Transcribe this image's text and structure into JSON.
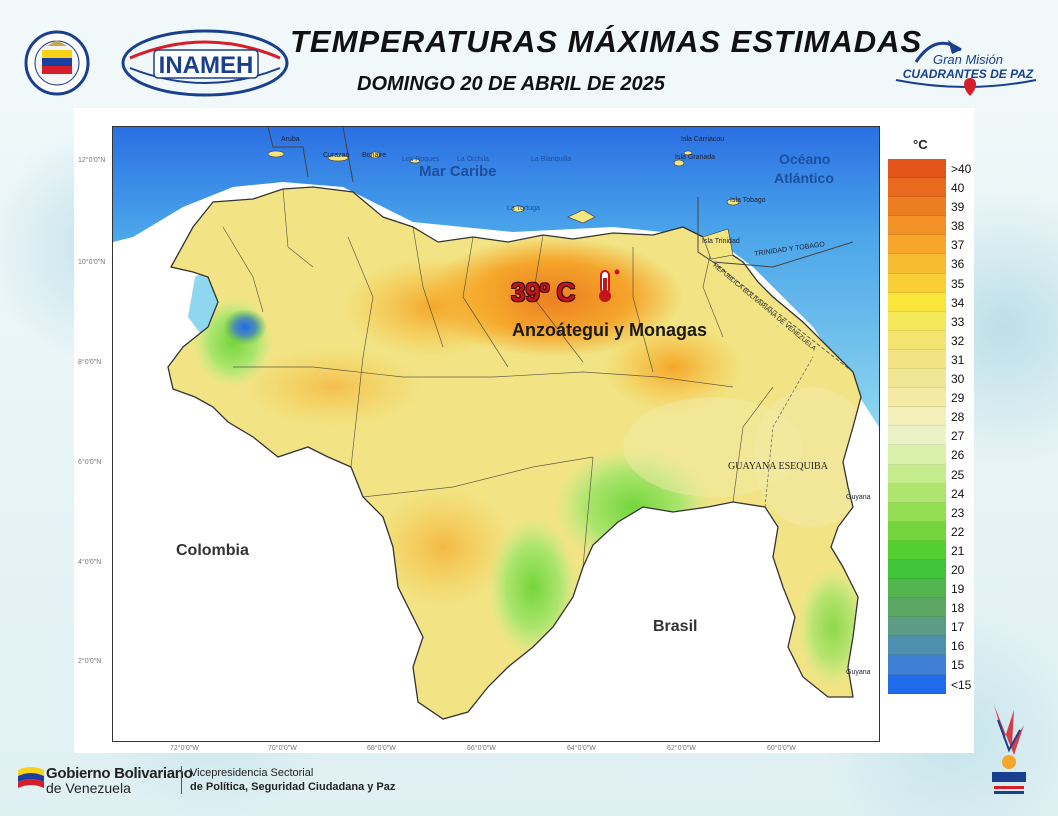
{
  "header": {
    "title": "TEMPERATURAS MÁXIMAS ESTIMADAS",
    "subtitle": "DOMINGO 20 DE ABRIL DE 2025",
    "inameh_logo": "INAMEH",
    "gran_mision_line1": "Gran Misión",
    "gran_mision_line2": "CUADRANTES DE PAZ"
  },
  "map": {
    "lat_labels": [
      "12°0'0\"N",
      "10°0'0\"N",
      "8°0'0\"N",
      "6°0'0\"N",
      "4°0'0\"N",
      "2°0'0\"N"
    ],
    "lon_labels": [
      "72°0'0\"W",
      "70°0'0\"W",
      "68°0'0\"W",
      "66°0'0\"W",
      "64°0'0\"W",
      "62°0'0\"W",
      "60°0'0\"W"
    ],
    "places": {
      "colombia": "Colombia",
      "brasil": "Brasil",
      "mar_caribe": "Mar Caribe",
      "oceano": "Océano",
      "atlantico": "Atlántico",
      "guayana_esequiba": "GUAYANA ESEQUIBA",
      "trinidad_tobago": "TRINIDAD Y TOBAGO",
      "republica": "REPUBLICA BOLIVARIANA DE VENEZUELA",
      "aruba": "Aruba",
      "curazao": "Curazao",
      "bonaire": "Bonaire",
      "los_roques": "Los Roques",
      "la_orchila": "La Orchila",
      "la_blanquilla": "La Blanquilla",
      "la_tortuga": "La Tortuga",
      "isla_carriacou": "Isla Carriacou",
      "isla_granada": "Isla Granada",
      "isla_tobago": "Isla Tobago",
      "isla_trinidad": "Isla Trinidad",
      "guyana_1": "Guyana",
      "guyana_2": "Guyana"
    },
    "highlight": {
      "temperature": "39º C",
      "region": "Anzoátegui y Monagas"
    }
  },
  "legend": {
    "unit": "°C",
    "entries": [
      {
        "label": ">40",
        "color": "#e3541b"
      },
      {
        "label": "40",
        "color": "#e86a1e"
      },
      {
        "label": "39",
        "color": "#ec7e22"
      },
      {
        "label": "38",
        "color": "#f19126"
      },
      {
        "label": "37",
        "color": "#f5a62b"
      },
      {
        "label": "36",
        "color": "#f7bb31"
      },
      {
        "label": "35",
        "color": "#f8cf34"
      },
      {
        "label": "34",
        "color": "#fae63a"
      },
      {
        "label": "33",
        "color": "#f5e75a"
      },
      {
        "label": "32",
        "color": "#f4e46f"
      },
      {
        "label": "31",
        "color": "#f2e482"
      },
      {
        "label": "30",
        "color": "#f1e693"
      },
      {
        "label": "29",
        "color": "#f2eaa5"
      },
      {
        "label": "28",
        "color": "#f3efbb"
      },
      {
        "label": "27",
        "color": "#eaf2c6"
      },
      {
        "label": "26",
        "color": "#d8f0a9"
      },
      {
        "label": "25",
        "color": "#c5ec8c"
      },
      {
        "label": "24",
        "color": "#ade56e"
      },
      {
        "label": "23",
        "color": "#93de52"
      },
      {
        "label": "22",
        "color": "#74d63c"
      },
      {
        "label": "21",
        "color": "#53cf32"
      },
      {
        "label": "20",
        "color": "#3fc43a"
      },
      {
        "label": "19",
        "color": "#52b54f"
      },
      {
        "label": "18",
        "color": "#5aa864"
      },
      {
        "label": "17",
        "color": "#5c9b85"
      },
      {
        "label": "16",
        "color": "#4f90af"
      },
      {
        "label": "15",
        "color": "#3f7fd4"
      },
      {
        "label": "<15",
        "color": "#1f6bea"
      }
    ]
  },
  "footer": {
    "gob_line1": "Gobierno Bolivariano",
    "gob_line2": "de Venezuela",
    "vice_line1": "Vicepresidencia Sectorial",
    "vice_line2": "de Política, Seguridad Ciudadana y Paz"
  },
  "colors": {
    "sea": "#67c2e8",
    "deep_sea": "#1f6bea",
    "highlight_temp": "#c3141c"
  }
}
